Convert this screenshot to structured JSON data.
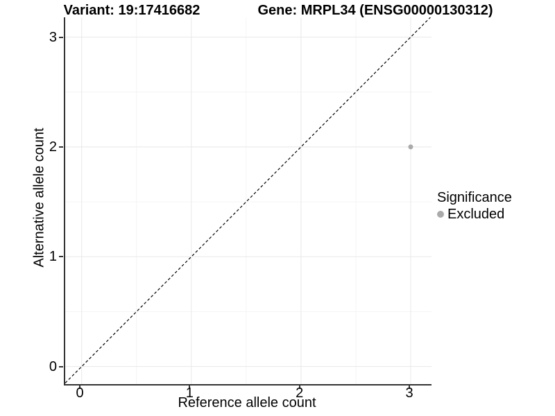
{
  "header": {
    "variant_title": "Variant: 19:17416682",
    "gene_title": "Gene: MRPL34 (ENSG00000130312)"
  },
  "axes": {
    "x": {
      "label": "Reference allele count",
      "tick_labels": [
        "0",
        "1",
        "2",
        "3"
      ]
    },
    "y": {
      "label": "Alternative allele count",
      "tick_labels": [
        "0",
        "1",
        "2",
        "3"
      ]
    }
  },
  "legend": {
    "title": "Significance",
    "items": [
      {
        "label": "Excluded",
        "color": "#aaaaaa"
      }
    ]
  },
  "colors": {
    "grid_major": "#e8e8e8",
    "grid_minor": "#f4f4f4",
    "axis_line": "#333333",
    "reference_line": "#000000",
    "point": "#aaaaaa"
  },
  "chart_data": {
    "type": "scatter",
    "title": "Variant: 19:17416682 / Gene: MRPL34 (ENSG00000130312)",
    "xlabel": "Reference allele count",
    "ylabel": "Alternative allele count",
    "xlim": [
      -0.15,
      3.19
    ],
    "ylim": [
      -0.16,
      3.18
    ],
    "x_ticks": [
      0,
      1,
      2,
      3
    ],
    "y_ticks": [
      0,
      1,
      2,
      3
    ],
    "grid": "major+minor",
    "legend_position": "right",
    "series": [
      {
        "name": "Excluded",
        "color": "#aaaaaa",
        "marker": "circle",
        "marker_radius": 3.5,
        "points": [
          [
            3,
            2
          ]
        ]
      }
    ],
    "reference_line": {
      "kind": "identity",
      "slope": 1,
      "intercept": 0,
      "style": "dashed",
      "color": "#000000"
    }
  }
}
